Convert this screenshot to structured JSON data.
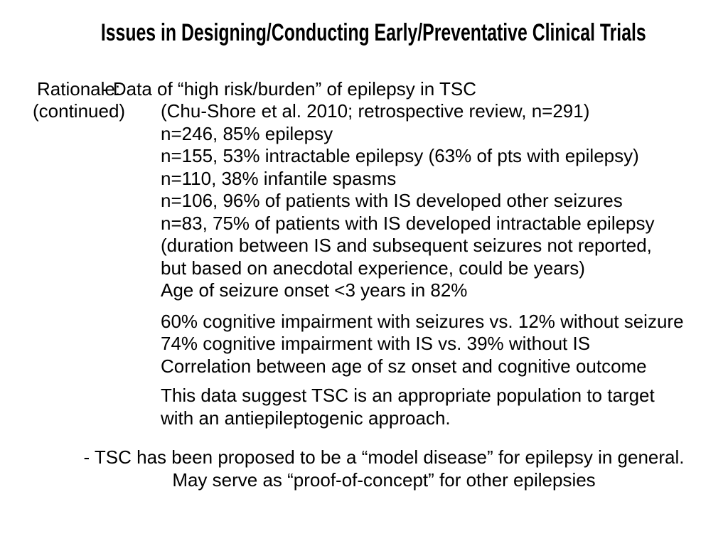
{
  "colors": {
    "background": "#ffffff",
    "text": "#000000"
  },
  "title": "Issues in Designing/Conducting Early/Preventative Clinical Trials",
  "rationale": {
    "label_line1": "Rationale:",
    "label_line2": "(continued)",
    "intro": "- Data of “high risk/burden” of epilepsy in TSC"
  },
  "study_block": {
    "lines": [
      "(Chu-Shore et al. 2010; retrospective review, n=291)",
      "n=246, 85% epilepsy",
      "n=155, 53% intractable epilepsy (63% of pts with epilepsy)",
      "n=110, 38% infantile spasms",
      "n=106, 96% of patients with IS developed other seizures",
      "n=83, 75% of patients with IS developed intractable epilepsy",
      "(duration between IS and subsequent seizures not reported,",
      "but based on anecdotal experience, could be years)",
      "Age of seizure onset <3 years in 82%"
    ]
  },
  "cognitive_block": {
    "lines": [
      "60% cognitive impairment with seizures vs. 12% without seizure",
      "74% cognitive impairment with IS vs. 39% without IS",
      "Correlation between age of sz onset and cognitive outcome"
    ]
  },
  "conclusion_block": {
    "lines": [
      "This data suggest TSC is an appropriate population to target",
      "with an antiepileptogenic approach."
    ]
  },
  "footer_block": {
    "lines": [
      "- TSC has been proposed to be a “model disease” for epilepsy in general.",
      "May serve as “proof-of-concept” for other epilepsies"
    ]
  }
}
